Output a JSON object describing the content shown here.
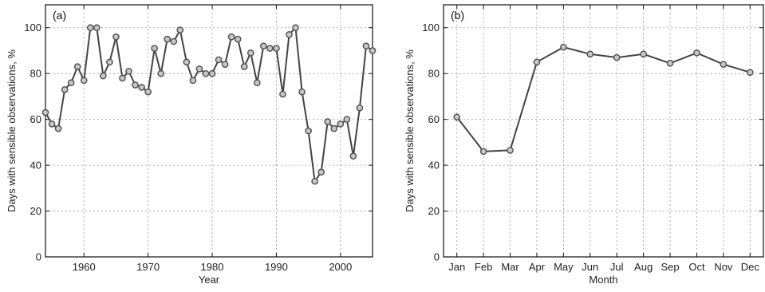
{
  "chart_data": [
    {
      "type": "line",
      "panel_label": "(a)",
      "xlabel": "Year",
      "ylabel": "Days with sensible observations, %",
      "xlim": [
        1954,
        2005
      ],
      "ylim": [
        0,
        110
      ],
      "xticks": [
        1960,
        1970,
        1980,
        1990,
        2000
      ],
      "yticks": [
        0,
        20,
        40,
        60,
        80,
        100
      ],
      "grid": true,
      "x": [
        1954,
        1955,
        1956,
        1957,
        1958,
        1959,
        1960,
        1961,
        1962,
        1963,
        1964,
        1965,
        1966,
        1967,
        1968,
        1969,
        1970,
        1971,
        1972,
        1973,
        1974,
        1975,
        1976,
        1977,
        1978,
        1979,
        1980,
        1981,
        1982,
        1983,
        1984,
        1985,
        1986,
        1987,
        1988,
        1989,
        1990,
        1991,
        1992,
        1993,
        1994,
        1995,
        1996,
        1997,
        1998,
        1999,
        2000,
        2001,
        2002,
        2003,
        2004,
        2005
      ],
      "y": [
        63,
        58,
        56,
        73,
        76,
        83,
        77,
        100,
        100,
        79,
        85,
        96,
        78,
        81,
        75,
        74,
        72,
        91,
        80,
        95,
        94,
        99,
        85,
        77,
        82,
        80,
        80,
        86,
        84,
        96,
        95,
        83,
        89,
        76,
        92,
        91,
        91,
        71,
        97,
        100,
        72,
        55,
        33,
        37,
        59,
        56,
        58,
        60,
        44,
        65,
        92,
        90
      ]
    },
    {
      "type": "line",
      "panel_label": "(b)",
      "xlabel": "Month",
      "ylabel": "Days with sensible observations, %",
      "ylim": [
        0,
        110
      ],
      "yticks": [
        0,
        20,
        40,
        60,
        80,
        100
      ],
      "grid": true,
      "categories": [
        "Jan",
        "Feb",
        "Mar",
        "Apr",
        "May",
        "Jun",
        "Jul",
        "Aug",
        "Sep",
        "Oct",
        "Nov",
        "Dec"
      ],
      "values": [
        61,
        46,
        46.5,
        85,
        91.5,
        88.5,
        87,
        88.5,
        84.5,
        89,
        84,
        80.5
      ]
    }
  ]
}
